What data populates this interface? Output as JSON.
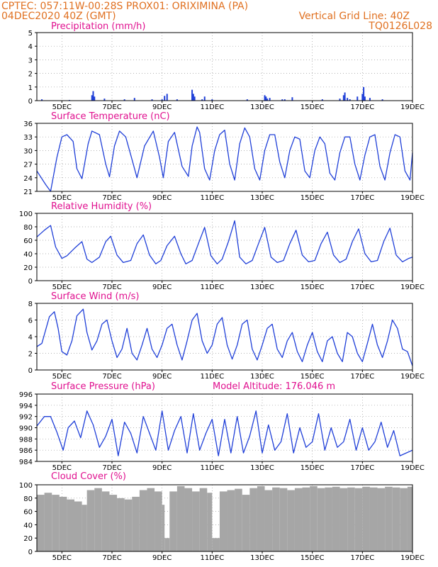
{
  "header": {
    "line1": "CPTEC:   057:11W-00:28S   PROX01: ORIXIMINA (PA)",
    "date": "04DEC2020 40Z (GMT)",
    "vgrid": "Vertical Grid Line: 40Z",
    "code": "TQ0126L028"
  },
  "colors": {
    "header": "#e07020",
    "title": "#e0108f",
    "line": "#1f3fd8",
    "bar": "#1f3fd8",
    "cloud": "#a6a6a6",
    "grid": "#9a9a9a"
  },
  "chart_data": [
    {
      "id": "precip",
      "type": "bar",
      "title": "Precipitation (mm/h)",
      "ylim": [
        0,
        5
      ],
      "yticks": [
        0,
        1,
        2,
        3,
        4,
        5
      ],
      "xlim": [
        4,
        19
      ],
      "xticks": [
        "5DEC",
        "7DEC",
        "9DEC",
        "11DEC",
        "13DEC",
        "15DEC",
        "17DEC",
        "19DEC"
      ],
      "x": [
        4.2,
        5.3,
        6.2,
        6.25,
        6.3,
        6.7,
        7.5,
        7.9,
        8.6,
        9.0,
        9.1,
        9.2,
        9.6,
        10.2,
        10.25,
        10.3,
        10.6,
        10.7,
        11.0,
        12.4,
        13.1,
        13.15,
        13.2,
        13.3,
        13.8,
        13.9,
        14.2,
        15.4,
        16.1,
        16.25,
        16.3,
        16.4,
        16.5,
        16.8,
        17.0,
        17.05,
        17.1,
        17.3,
        17.8
      ],
      "values": [
        0.1,
        0.05,
        0.4,
        0.7,
        0.3,
        0.15,
        0.1,
        0.2,
        0.1,
        0.1,
        0.35,
        0.5,
        0.1,
        0.8,
        0.5,
        0.3,
        0.1,
        0.3,
        0.1,
        0.1,
        0.4,
        0.3,
        0.15,
        0.2,
        0.1,
        0.1,
        0.25,
        0.1,
        0.15,
        0.4,
        0.6,
        0.2,
        0.1,
        0.3,
        0.5,
        1.0,
        0.3,
        0.2,
        0.1
      ]
    },
    {
      "id": "temp",
      "type": "line",
      "title": "Surface Temperature (nC)",
      "ylim": [
        21,
        36
      ],
      "yticks": [
        21,
        24,
        27,
        30,
        33,
        36
      ],
      "xlim": [
        4,
        19
      ],
      "xticks": [
        "5DEC",
        "7DEC",
        "9DEC",
        "11DEC",
        "13DEC",
        "15DEC",
        "17DEC",
        "19DEC"
      ],
      "x": [
        4.0,
        4.35,
        4.55,
        4.8,
        5.0,
        5.2,
        5.45,
        5.6,
        5.8,
        6.05,
        6.2,
        6.5,
        6.75,
        6.9,
        7.1,
        7.3,
        7.55,
        7.8,
        8.0,
        8.3,
        8.65,
        8.9,
        9.05,
        9.25,
        9.5,
        9.8,
        10.05,
        10.2,
        10.4,
        10.5,
        10.7,
        10.9,
        11.1,
        11.3,
        11.5,
        11.7,
        11.9,
        12.1,
        12.3,
        12.5,
        12.7,
        12.9,
        13.1,
        13.3,
        13.5,
        13.7,
        13.9,
        14.1,
        14.3,
        14.5,
        14.7,
        14.9,
        15.1,
        15.3,
        15.5,
        15.7,
        15.9,
        16.1,
        16.3,
        16.5,
        16.7,
        16.9,
        17.1,
        17.3,
        17.5,
        17.7,
        17.9,
        18.1,
        18.3,
        18.5,
        18.7,
        18.9,
        19.0
      ],
      "values": [
        25.5,
        22.5,
        21.0,
        28.5,
        33.0,
        33.5,
        32.0,
        26.0,
        23.8,
        31.5,
        34.3,
        33.5,
        27.0,
        24.2,
        31.0,
        34.3,
        33.0,
        28.0,
        24.0,
        31.0,
        34.3,
        28.5,
        24.0,
        32.0,
        34.0,
        26.5,
        24.3,
        31.0,
        35.2,
        34.0,
        26.0,
        23.5,
        30.0,
        33.5,
        34.5,
        27.0,
        23.5,
        31.5,
        35.0,
        33.0,
        26.0,
        23.5,
        30.0,
        33.5,
        33.5,
        27.5,
        24.0,
        30.0,
        33.0,
        32.5,
        25.5,
        24.0,
        30.0,
        33.0,
        31.5,
        25.0,
        23.5,
        29.5,
        33.0,
        33.0,
        27.0,
        23.5,
        29.0,
        33.0,
        33.5,
        26.5,
        23.5,
        29.5,
        33.5,
        33.0,
        25.5,
        23.5,
        29.5
      ]
    },
    {
      "id": "rh",
      "type": "line",
      "title": "Relative Humidity (%)",
      "ylim": [
        0,
        100
      ],
      "yticks": [
        0,
        20,
        40,
        60,
        80,
        100
      ],
      "xlim": [
        4,
        19
      ],
      "xticks": [
        "5DEC",
        "7DEC",
        "9DEC",
        "11DEC",
        "13DEC",
        "15DEC",
        "17DEC",
        "19DEC"
      ],
      "x": [
        4.0,
        4.3,
        4.55,
        4.75,
        5.0,
        5.2,
        5.5,
        5.8,
        6.0,
        6.2,
        6.5,
        6.75,
        6.95,
        7.2,
        7.45,
        7.75,
        8.0,
        8.25,
        8.5,
        8.75,
        8.95,
        9.2,
        9.5,
        9.75,
        9.95,
        10.2,
        10.45,
        10.7,
        10.95,
        11.2,
        11.4,
        11.65,
        11.9,
        12.1,
        12.35,
        12.6,
        12.85,
        13.1,
        13.35,
        13.6,
        13.85,
        14.1,
        14.35,
        14.6,
        14.85,
        15.1,
        15.35,
        15.6,
        15.85,
        16.1,
        16.35,
        16.6,
        16.85,
        17.1,
        17.35,
        17.6,
        17.85,
        18.1,
        18.35,
        18.6,
        18.85,
        19.0
      ],
      "values": [
        65,
        75,
        82,
        50,
        33,
        37,
        48,
        58,
        32,
        27,
        35,
        58,
        66,
        38,
        27,
        30,
        55,
        68,
        38,
        25,
        30,
        52,
        66,
        40,
        25,
        30,
        55,
        79,
        37,
        25,
        32,
        58,
        89,
        35,
        25,
        30,
        55,
        79,
        35,
        27,
        30,
        55,
        75,
        38,
        28,
        30,
        55,
        72,
        38,
        27,
        32,
        58,
        77,
        40,
        28,
        30,
        58,
        78,
        38,
        28,
        33,
        35
      ]
    },
    {
      "id": "wind",
      "type": "line",
      "title": "Surface Wind (m/s)",
      "ylim": [
        0,
        8
      ],
      "yticks": [
        0,
        2,
        4,
        6,
        8
      ],
      "xlim": [
        4,
        19
      ],
      "xticks": [
        "5DEC",
        "7DEC",
        "9DEC",
        "11DEC",
        "13DEC",
        "15DEC",
        "17DEC",
        "19DEC"
      ],
      "x": [
        4.0,
        4.2,
        4.5,
        4.7,
        4.85,
        5.0,
        5.2,
        5.4,
        5.6,
        5.85,
        6.0,
        6.2,
        6.4,
        6.6,
        6.8,
        7.0,
        7.2,
        7.4,
        7.6,
        7.8,
        8.0,
        8.2,
        8.4,
        8.6,
        8.8,
        9.0,
        9.2,
        9.4,
        9.6,
        9.8,
        10.0,
        10.2,
        10.4,
        10.6,
        10.8,
        11.0,
        11.2,
        11.4,
        11.6,
        11.8,
        12.0,
        12.2,
        12.4,
        12.6,
        12.8,
        13.0,
        13.2,
        13.4,
        13.6,
        13.8,
        14.0,
        14.2,
        14.4,
        14.6,
        14.8,
        15.0,
        15.2,
        15.4,
        15.6,
        15.8,
        16.0,
        16.2,
        16.4,
        16.6,
        16.8,
        17.0,
        17.2,
        17.4,
        17.6,
        17.8,
        18.0,
        18.2,
        18.4,
        18.6,
        18.8,
        19.0
      ],
      "values": [
        2.8,
        3.2,
        6.4,
        7.0,
        5.0,
        2.2,
        1.8,
        3.5,
        6.5,
        7.3,
        4.5,
        2.4,
        3.5,
        5.5,
        6.0,
        3.5,
        1.5,
        2.5,
        5.0,
        2.0,
        1.2,
        3.0,
        5.0,
        2.5,
        1.5,
        3.0,
        5.0,
        5.5,
        3.0,
        1.2,
        3.5,
        6.0,
        6.8,
        3.5,
        2.0,
        3.0,
        5.5,
        6.3,
        3.0,
        1.3,
        3.0,
        5.5,
        6.0,
        2.5,
        1.2,
        3.0,
        5.0,
        5.5,
        2.5,
        1.5,
        3.5,
        4.5,
        2.2,
        1.0,
        3.0,
        4.5,
        2.2,
        1.0,
        3.5,
        4.0,
        2.0,
        1.0,
        4.5,
        4.0,
        2.0,
        1.0,
        3.2,
        5.5,
        3.0,
        1.5,
        3.5,
        6.0,
        5.0,
        2.5,
        2.2,
        0.5
      ]
    },
    {
      "id": "pres",
      "type": "line",
      "title": "Surface Pressure (hPa)",
      "model_altitude": "Model Altitude: 176.046 m",
      "ylim": [
        984,
        996
      ],
      "yticks": [
        984,
        986,
        988,
        990,
        992,
        994,
        996
      ],
      "xlim": [
        4,
        19
      ],
      "xticks": [
        "5DEC",
        "7DEC",
        "9DEC",
        "11DEC",
        "13DEC",
        "15DEC",
        "17DEC",
        "19DEC"
      ],
      "x": [
        4.0,
        4.3,
        4.55,
        4.8,
        5.05,
        5.25,
        5.5,
        5.75,
        6.0,
        6.25,
        6.5,
        6.75,
        7.0,
        7.25,
        7.5,
        7.75,
        8.0,
        8.25,
        8.5,
        8.75,
        9.0,
        9.25,
        9.5,
        9.75,
        10.0,
        10.25,
        10.5,
        10.75,
        11.0,
        11.25,
        11.5,
        11.75,
        12.0,
        12.25,
        12.5,
        12.75,
        13.0,
        13.25,
        13.5,
        13.75,
        14.0,
        14.25,
        14.5,
        14.75,
        15.0,
        15.25,
        15.5,
        15.75,
        16.0,
        16.25,
        16.5,
        16.75,
        17.0,
        17.25,
        17.5,
        17.75,
        18.0,
        18.25,
        18.5,
        18.75,
        19.0
      ],
      "values": [
        990.3,
        992.0,
        992.0,
        989.2,
        986.0,
        990.0,
        991.2,
        988.2,
        993.0,
        990.5,
        986.5,
        988.5,
        991.5,
        985.0,
        991.0,
        989.0,
        985.5,
        992.0,
        989.0,
        986.0,
        993.0,
        986.0,
        989.5,
        992.0,
        985.5,
        992.5,
        986.0,
        989.0,
        991.5,
        985.0,
        991.5,
        985.5,
        992.0,
        985.5,
        988.5,
        993.0,
        985.5,
        990.5,
        986.0,
        987.5,
        992.5,
        985.5,
        990.0,
        986.5,
        987.5,
        992.5,
        986.0,
        990.0,
        986.5,
        987.5,
        991.5,
        986.0,
        990.0,
        986.0,
        987.5,
        991.0,
        986.5,
        989.5,
        985.0,
        985.5,
        986.0
      ]
    },
    {
      "id": "cloud",
      "type": "area",
      "title": "Cloud Cover (%)",
      "ylim": [
        0,
        100
      ],
      "yticks": [
        0,
        20,
        40,
        60,
        80,
        100
      ],
      "xlim": [
        4,
        19
      ],
      "xticks": [
        "5DEC",
        "7DEC",
        "9DEC",
        "11DEC",
        "13DEC",
        "15DEC",
        "17DEC",
        "19DEC"
      ],
      "x": [
        4.0,
        4.3,
        4.6,
        4.9,
        5.2,
        5.5,
        5.8,
        6.0,
        6.3,
        6.6,
        6.9,
        7.2,
        7.5,
        7.8,
        8.1,
        8.4,
        8.7,
        9.0,
        9.1,
        9.3,
        9.6,
        9.9,
        10.2,
        10.5,
        10.8,
        11.0,
        11.3,
        11.6,
        11.9,
        12.2,
        12.5,
        12.8,
        13.1,
        13.4,
        13.7,
        14.0,
        14.3,
        14.6,
        14.9,
        15.2,
        15.5,
        15.8,
        16.1,
        16.4,
        16.7,
        17.0,
        17.3,
        17.6,
        17.9,
        18.2,
        18.5,
        18.8,
        19.0
      ],
      "values": [
        85,
        88,
        85,
        82,
        78,
        75,
        70,
        92,
        95,
        90,
        85,
        80,
        78,
        82,
        92,
        95,
        90,
        70,
        20,
        90,
        98,
        95,
        90,
        95,
        88,
        20,
        90,
        92,
        94,
        85,
        95,
        98,
        92,
        96,
        95,
        92,
        95,
        96,
        98,
        95,
        96,
        97,
        95,
        96,
        95,
        97,
        96,
        95,
        97,
        96,
        95,
        97,
        96
      ]
    }
  ]
}
